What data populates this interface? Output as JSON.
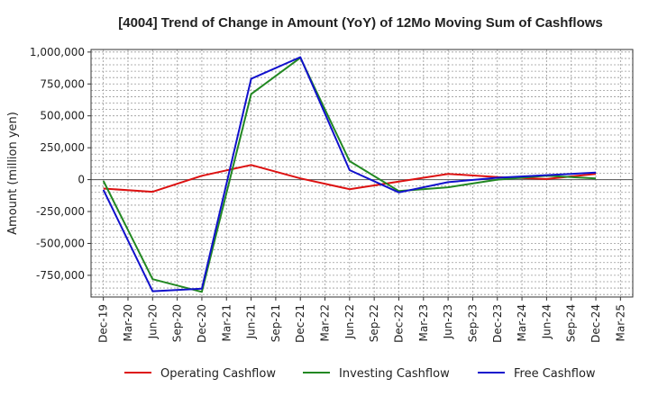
{
  "chart_data": {
    "type": "line",
    "title": "[4004]  Trend of Change in Amount (YoY) of 12Mo Moving Sum of Cashflows",
    "xlabel": "",
    "ylabel": "Amount (million yen)",
    "ylim": [
      -920000,
      1020000
    ],
    "yticks": [
      -750000,
      -500000,
      -250000,
      0,
      250000,
      500000,
      750000,
      1000000
    ],
    "ytick_labels": [
      "-750,000",
      "-500,000",
      "-250,000",
      "0",
      "250,000",
      "500,000",
      "750,000",
      "1,000,000"
    ],
    "categories": [
      "Dec-19",
      "Mar-20",
      "Jun-20",
      "Sep-20",
      "Dec-20",
      "Mar-21",
      "Jun-21",
      "Sep-21",
      "Dec-21",
      "Mar-22",
      "Jun-22",
      "Sep-22",
      "Dec-22",
      "Mar-23",
      "Jun-23",
      "Sep-23",
      "Dec-23",
      "Mar-24",
      "Jun-24",
      "Sep-24",
      "Dec-24",
      "Mar-25"
    ],
    "series": [
      {
        "name": "Operating Cashflow",
        "color": "#dd1111",
        "points": [
          [
            0,
            -70000
          ],
          [
            2,
            -95000
          ],
          [
            4,
            30000
          ],
          [
            6,
            115000
          ],
          [
            8,
            10000
          ],
          [
            10,
            -75000
          ],
          [
            12,
            -15000
          ],
          [
            14,
            45000
          ],
          [
            16,
            20000
          ],
          [
            18,
            5000
          ],
          [
            20,
            45000
          ]
        ]
      },
      {
        "name": "Investing Cashflow",
        "color": "#228822",
        "points": [
          [
            0,
            -10000
          ],
          [
            2,
            -780000
          ],
          [
            4,
            -880000
          ],
          [
            6,
            670000
          ],
          [
            8,
            955000
          ],
          [
            10,
            145000
          ],
          [
            12,
            -90000
          ],
          [
            14,
            -60000
          ],
          [
            16,
            0
          ],
          [
            18,
            30000
          ],
          [
            20,
            10000
          ]
        ]
      },
      {
        "name": "Free Cashflow",
        "color": "#1111cc",
        "points": [
          [
            0,
            -80000
          ],
          [
            2,
            -875000
          ],
          [
            4,
            -855000
          ],
          [
            6,
            790000
          ],
          [
            8,
            960000
          ],
          [
            10,
            75000
          ],
          [
            12,
            -100000
          ],
          [
            14,
            -20000
          ],
          [
            16,
            15000
          ],
          [
            18,
            35000
          ],
          [
            20,
            55000
          ]
        ]
      }
    ],
    "grid": true,
    "legend": "bottom-center"
  }
}
